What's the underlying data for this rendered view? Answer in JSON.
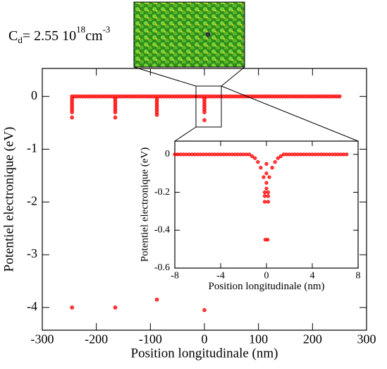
{
  "chart_data": [
    {
      "type": "scatter",
      "color": "#ff0000",
      "xlabel": "Position longitudinale (nm)",
      "ylabel": "Potentiel electronique (eV)",
      "annotation": [
        "C",
        "d",
        "= 2.55 10",
        "18",
        "cm",
        "-3"
      ],
      "xlim": [
        -300,
        300
      ],
      "ylim": [
        -4.43,
        0.53
      ],
      "xticks": [
        -300,
        -200,
        -100,
        0,
        100,
        200,
        300
      ],
      "yticks": [
        -4,
        -3,
        -2,
        -1,
        0
      ],
      "x": [
        -245,
        -240,
        -235,
        -230,
        -225,
        -220,
        -215,
        -210,
        -205,
        -200,
        -195,
        -190,
        -185,
        -180,
        -175,
        -170,
        -165,
        -160,
        -155,
        -150,
        -145,
        -140,
        -135,
        -130,
        -125,
        -120,
        -115,
        -110,
        -105,
        -100,
        -95,
        -90,
        -85,
        -80,
        -75,
        -70,
        -65,
        -60,
        -55,
        -50,
        -45,
        -40,
        -35,
        -30,
        -25,
        -20,
        -15,
        -10,
        -5,
        0,
        5,
        10,
        15,
        20,
        25,
        30,
        35,
        40,
        45,
        50,
        55,
        60,
        65,
        70,
        75,
        80,
        85,
        90,
        95,
        100,
        105,
        110,
        115,
        120,
        125,
        130,
        135,
        140,
        145,
        150,
        155,
        160,
        165,
        170,
        175,
        180,
        185,
        190,
        195,
        200,
        205,
        210,
        215,
        220,
        225,
        230,
        235,
        240,
        245,
        250,
        -245,
        -245,
        -245,
        -245,
        -245,
        -245,
        -245,
        -165,
        -165,
        -165,
        -165,
        -165,
        -165,
        -165,
        -88,
        -88,
        -88,
        -88,
        -88,
        -88,
        -88,
        0,
        0,
        0,
        0,
        0,
        0,
        0,
        -245,
        -165,
        -88,
        0
      ],
      "values": [
        0,
        0,
        0,
        0,
        0,
        0,
        0,
        0,
        0,
        0,
        0,
        0,
        0,
        0,
        0,
        0,
        0,
        0,
        0,
        0,
        0,
        0,
        0,
        0,
        0,
        0,
        0,
        0,
        0,
        0,
        0,
        0,
        0,
        0,
        0,
        0,
        0,
        0,
        0,
        0,
        0,
        0,
        0,
        0,
        0,
        0,
        0,
        0,
        0,
        0,
        0,
        0,
        0,
        0,
        0,
        0,
        0,
        0,
        0,
        0,
        0,
        0,
        0,
        0,
        0,
        0,
        0,
        0,
        0,
        0,
        0,
        0,
        0,
        0,
        0,
        0,
        0,
        0,
        0,
        0,
        0,
        0,
        0,
        0,
        0,
        0,
        0,
        0,
        0,
        0,
        0,
        0,
        0,
        0,
        0,
        0,
        0,
        0,
        0,
        0,
        -0.05,
        -0.1,
        -0.15,
        -0.2,
        -0.25,
        -0.3,
        -0.4,
        -0.05,
        -0.1,
        -0.15,
        -0.2,
        -0.25,
        -0.3,
        -0.4,
        -0.05,
        -0.1,
        -0.15,
        -0.2,
        -0.25,
        -0.3,
        -0.35,
        -0.05,
        -0.1,
        -0.15,
        -0.2,
        -0.25,
        -0.3,
        -0.45,
        -4.0,
        -4.0,
        -3.85,
        -4.05
      ]
    },
    {
      "type": "scatter",
      "color": "#ff0000",
      "xlabel": "Position longitudinale (nm)",
      "ylabel": "Potentiel electronique (eV)",
      "xlim": [
        -8,
        8
      ],
      "ylim": [
        -0.6,
        0.07
      ],
      "xticks": [
        -8,
        -4,
        0,
        4,
        8
      ],
      "yticks": [
        -0.6,
        -0.4,
        -0.2,
        0
      ],
      "x": [
        -8,
        -7.75,
        -7.5,
        -7.25,
        -7,
        -6.75,
        -6.5,
        -6.25,
        -6,
        -5.75,
        -5.5,
        -5.25,
        -5,
        -4.75,
        -4.5,
        -4.25,
        -4,
        -3.75,
        -3.5,
        -3.25,
        -3,
        -2.75,
        -2.5,
        -2.25,
        -2,
        -1.75,
        -1.5,
        -1.25,
        -1,
        -0.75,
        -0.5,
        -0.25,
        0,
        0.25,
        0.5,
        0.75,
        1,
        1.25,
        1.5,
        1.75,
        2,
        2.25,
        2.5,
        2.75,
        3,
        3.25,
        3.5,
        3.75,
        4,
        4.25,
        4.5,
        4.75,
        5,
        5.25,
        5.5,
        5.75,
        6,
        6.25,
        6.5,
        6.75,
        7,
        0,
        0,
        0,
        -0.15,
        0.15,
        -0.15,
        0.15,
        -0.15,
        0.15,
        -0.1,
        0.1
      ],
      "values": [
        0,
        0,
        0,
        0,
        0,
        0,
        0,
        0,
        0,
        0,
        0,
        0,
        0,
        0,
        0,
        0,
        0,
        0,
        0,
        0,
        0,
        0,
        0,
        0,
        0,
        0,
        0,
        -0.01,
        -0.02,
        -0.04,
        -0.07,
        -0.12,
        -0.18,
        -0.12,
        -0.07,
        -0.04,
        -0.02,
        -0.01,
        0,
        0,
        0,
        0,
        0,
        0,
        0,
        0,
        0,
        0,
        0,
        0,
        0,
        0,
        0,
        0,
        0,
        0,
        0,
        0,
        0,
        0,
        0,
        -0.05,
        -0.1,
        -0.15,
        -0.2,
        -0.2,
        -0.22,
        -0.22,
        -0.25,
        -0.25,
        -0.45,
        -0.45
      ]
    }
  ]
}
